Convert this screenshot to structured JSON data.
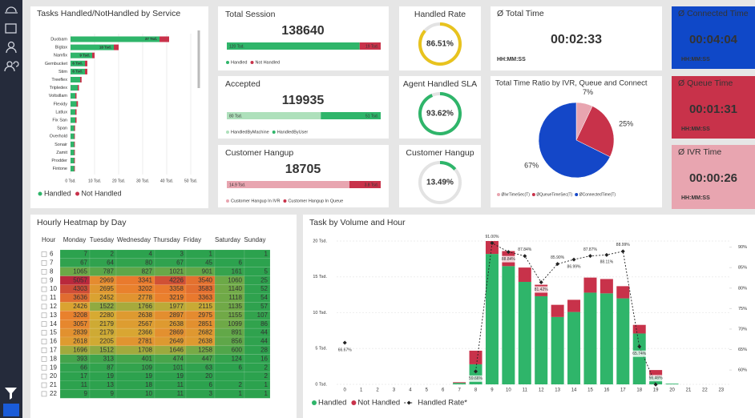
{
  "services_chart": {
    "type": "bar",
    "orientation": "horizontal",
    "title": "Tasks Handled/NotHandled by Service",
    "categories": [
      "Duobam",
      "Bigtax",
      "Namfix",
      "Gembucket",
      "Stim",
      "Treeflex",
      "Tripledex",
      "Voltsillam",
      "Flexidy",
      "Latlux",
      "Fix San",
      "Span",
      "Overhold",
      "Sonair",
      "Zamit",
      "Prodder",
      "Fintone"
    ],
    "series": [
      {
        "name": "Handled",
        "color": "#2fb56a",
        "values": [
          37,
          18,
          9,
          6,
          6,
          4,
          3,
          2,
          2.5,
          2,
          2,
          1.5,
          1.5,
          1.5,
          1.5,
          1.5,
          1.5
        ],
        "value_labels": [
          "37 Tsd.",
          "18 Tsd.",
          "9 Tsd.",
          "6 Tsd.",
          "6 Tsd.",
          null,
          null,
          null,
          null,
          null,
          null,
          null,
          null,
          null,
          null,
          null,
          null
        ]
      },
      {
        "name": "Not Handled",
        "color": "#c8324a",
        "values": [
          4,
          2,
          1,
          1,
          1,
          0.6,
          0.5,
          0.5,
          0.6,
          0.5,
          0.5,
          0.4,
          0.3,
          0.3,
          0.3,
          0.3,
          0.3
        ]
      }
    ],
    "xlim": [
      0,
      50
    ],
    "xticks": [
      {
        "value": 0,
        "label": "0 Tsd."
      },
      {
        "value": 10,
        "label": "10 Tsd."
      },
      {
        "value": 20,
        "label": "20 Tsd."
      },
      {
        "value": 30,
        "label": "30 Tsd."
      },
      {
        "value": 40,
        "label": "40 Tsd."
      },
      {
        "value": 50,
        "label": "50 Tsd."
      }
    ]
  },
  "kpis": [
    {
      "title": "Total Session",
      "value": 138640,
      "segments": [
        {
          "name": "Handled",
          "value": 120,
          "value_label": "120 Tsd.",
          "color": "#2fb56a"
        },
        {
          "name": "Not Handled",
          "value": 19,
          "value_label": "19 Tsd.",
          "color": "#c8324a"
        }
      ]
    },
    {
      "title": "Accepted",
      "value": 119935,
      "segments": [
        {
          "name": "HandledByMachine",
          "value": 80,
          "value_label": "80 Tsd.",
          "color": "#aee0bb"
        },
        {
          "name": "HandledByUser",
          "value": 51,
          "value_label": "51 Tsd.",
          "color": "#2fb56a"
        }
      ]
    },
    {
      "title": "Customer Hangup",
      "value": 18705,
      "segments": [
        {
          "name": "Customer Hangup In IVR",
          "value": 14.9,
          "value_label": "14.9 Tsd.",
          "color": "#e8a5b0"
        },
        {
          "name": "Customer Hangup In Queue",
          "value": 3.8,
          "value_label": "3.8 Tsd.",
          "color": "#c8324a"
        }
      ]
    }
  ],
  "gauges": [
    {
      "title": "Handled Rate",
      "value": 86.51,
      "value_label": "86.51%",
      "color": "#e8c31e"
    },
    {
      "title": "Agent Handled SLA",
      "value": 93.62,
      "value_label": "93.62%",
      "color": "#2fb56a"
    },
    {
      "title": "Customer Hangup",
      "value": 13.49,
      "value_label": "13.49%",
      "color": "#2fb56a"
    }
  ],
  "times": [
    {
      "title": "Ø Total Time",
      "value": "00:02:33",
      "unit": "HH:MM:SS",
      "color": "#ffffff"
    },
    {
      "title": "Ø Connected Time",
      "value": "00:04:04",
      "unit": "HH:MM:SS",
      "color": "#0f48c8"
    },
    {
      "title": "Ø Queue Time",
      "value": "00:01:31",
      "unit": "HH:MM:SS",
      "color": "#c8324a"
    },
    {
      "title": "Ø IVR Time",
      "value": "00:00:26",
      "unit": "HH:MM:SS",
      "color": "#e8a5b0"
    }
  ],
  "pie_chart": {
    "type": "pie",
    "title": "Total Time Ratio by IVR, Queue and Connect",
    "categories": [
      "ØIvrTimeSec(T)",
      "ØQueueTimeSec(T)",
      "ØConnectedTime(T)"
    ],
    "values": [
      7,
      25,
      67
    ],
    "value_labels": [
      "7%",
      "25%",
      "67%"
    ],
    "colors": [
      "#e8a5b0",
      "#c8324a",
      "#1447c8"
    ]
  },
  "heatmap": {
    "title": "Hourly Heatmap by Day",
    "columns": [
      "Hour",
      "Monday",
      "Tuesday",
      "Wednesday",
      "Thursday",
      "Friday",
      "Saturday",
      "Sunday"
    ],
    "rows": [
      {
        "hour": 6,
        "values": [
          7,
          2,
          4,
          3,
          1,
          null,
          1
        ]
      },
      {
        "hour": 7,
        "values": [
          67,
          64,
          80,
          67,
          45,
          6,
          null
        ]
      },
      {
        "hour": 8,
        "values": [
          1065,
          787,
          827,
          1021,
          901,
          161,
          5
        ]
      },
      {
        "hour": 9,
        "values": [
          5057,
          2969,
          3341,
          4226,
          3540,
          1060,
          25
        ]
      },
      {
        "hour": 10,
        "values": [
          4303,
          2695,
          3202,
          3358,
          3583,
          1140,
          52
        ]
      },
      {
        "hour": 11,
        "values": [
          3636,
          2452,
          2778,
          3219,
          3363,
          1118,
          54
        ]
      },
      {
        "hour": 12,
        "values": [
          2426,
          1522,
          1766,
          1977,
          2115,
          1135,
          57
        ]
      },
      {
        "hour": 13,
        "values": [
          3208,
          2280,
          2638,
          2897,
          2975,
          1155,
          107
        ]
      },
      {
        "hour": 14,
        "values": [
          3057,
          2179,
          2567,
          2638,
          2851,
          1099,
          86
        ]
      },
      {
        "hour": 15,
        "values": [
          2839,
          2179,
          2366,
          2869,
          2682,
          891,
          44
        ]
      },
      {
        "hour": 16,
        "values": [
          2618,
          2205,
          2781,
          2649,
          2638,
          856,
          44
        ]
      },
      {
        "hour": 17,
        "values": [
          1696,
          1512,
          1708,
          1646,
          1258,
          600,
          28
        ]
      },
      {
        "hour": 18,
        "values": [
          393,
          313,
          401,
          474,
          447,
          124,
          16
        ]
      },
      {
        "hour": 19,
        "values": [
          66,
          87,
          109,
          101,
          63,
          6,
          2
        ]
      },
      {
        "hour": 20,
        "values": [
          17,
          19,
          19,
          19,
          20,
          null,
          2
        ]
      },
      {
        "hour": 21,
        "values": [
          11,
          13,
          18,
          11,
          6,
          2,
          1
        ]
      },
      {
        "hour": 22,
        "values": [
          9,
          9,
          10,
          11,
          3,
          1,
          1
        ]
      }
    ]
  },
  "volume_chart": {
    "type": "bar",
    "stacked": true,
    "title": "Task by Volume and Hour",
    "categories": [
      0,
      1,
      2,
      3,
      4,
      5,
      6,
      7,
      8,
      9,
      10,
      11,
      12,
      13,
      14,
      15,
      16,
      17,
      18,
      19,
      20,
      21,
      22,
      23
    ],
    "series": [
      {
        "name": "Handled",
        "color": "#2fb56a",
        "values": [
          0,
          0,
          0,
          0,
          0,
          0,
          0,
          0.2,
          2.8,
          18.2,
          16.5,
          14.3,
          12.3,
          9.4,
          10.1,
          12.8,
          12.7,
          12.0,
          7.1,
          1.1,
          0.1,
          0,
          0,
          0
        ]
      },
      {
        "name": "Not Handled",
        "color": "#c8324a",
        "values": [
          0,
          0,
          0,
          0,
          0,
          0,
          0,
          0.1,
          1.9,
          1.8,
          2.1,
          2.0,
          1.6,
          1.7,
          1.7,
          2.1,
          2.0,
          1.7,
          1.2,
          0.9,
          0,
          0,
          0,
          0
        ]
      },
      {
        "name": "Handled Rate*",
        "type": "line",
        "axis": "y2",
        "color": "#222222",
        "values": [
          66.67,
          null,
          null,
          null,
          null,
          null,
          null,
          null,
          59.66,
          91.0,
          88.84,
          87.84,
          81.42,
          85.9,
          86.99,
          87.87,
          88.11,
          88.99,
          65.74,
          56.46,
          null,
          null,
          null,
          null
        ],
        "value_labels": [
          "66.67%",
          null,
          null,
          null,
          null,
          null,
          null,
          null,
          "59.66%",
          "91.00%",
          "88.84%",
          "87.84%",
          "81.42%",
          "85.90%",
          "86.99%",
          "87.87%",
          "88.11%",
          "88.99%",
          "65.74%",
          "56.46%",
          null,
          null,
          null,
          null
        ]
      }
    ],
    "ylim": [
      0,
      20
    ],
    "yticks": [
      {
        "value": 0,
        "label": "0 Tsd."
      },
      {
        "value": 5,
        "label": "5 Tsd."
      },
      {
        "value": 10,
        "label": "10 Tsd."
      },
      {
        "value": 15,
        "label": "15 Tsd."
      },
      {
        "value": 20,
        "label": "20 Tsd."
      }
    ],
    "y2lim": [
      56.5,
      91.5
    ],
    "y2ticks": [
      {
        "value": 60,
        "label": "60%"
      },
      {
        "value": 65,
        "label": "65%"
      },
      {
        "value": 70,
        "label": "70%"
      },
      {
        "value": 75,
        "label": "75%"
      },
      {
        "value": 80,
        "label": "80%"
      },
      {
        "value": 85,
        "label": "85%"
      },
      {
        "value": 90,
        "label": "90%"
      }
    ]
  }
}
